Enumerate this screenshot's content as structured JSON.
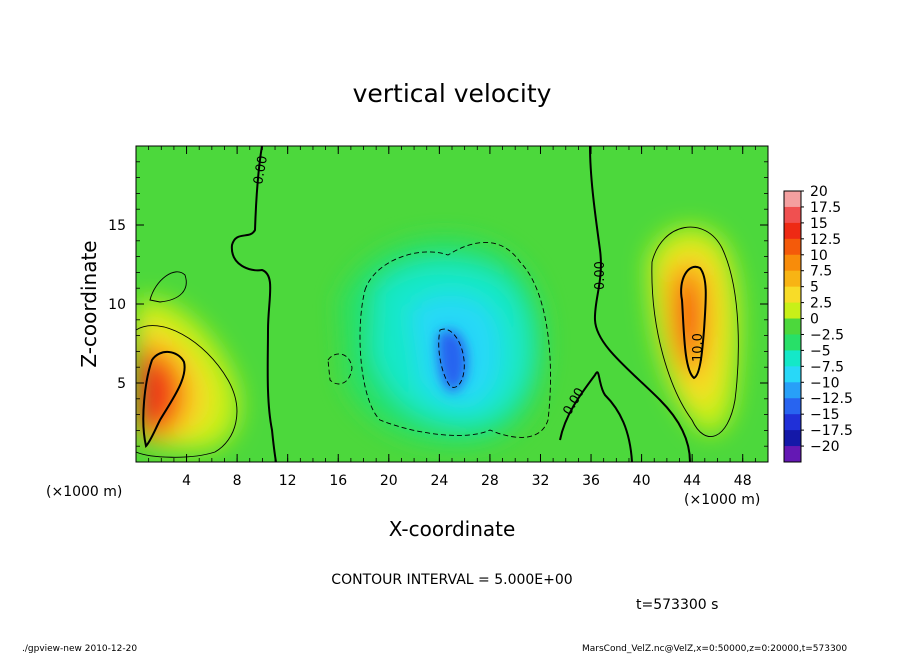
{
  "chart_data": {
    "type": "heatmap",
    "title": "vertical velocity",
    "xlabel": "X-coordinate",
    "ylabel": "Z-coordinate",
    "x_unit_label": "(×1000 m)",
    "xlim": [
      0,
      50
    ],
    "ylim": [
      0,
      20
    ],
    "x_ticks": [
      "4",
      "8",
      "12",
      "16",
      "20",
      "24",
      "28",
      "32",
      "36",
      "40",
      "44",
      "48"
    ],
    "y_ticks": [
      "5",
      "10",
      "15"
    ],
    "colorbar": {
      "labels": [
        "20",
        "17.5",
        "15",
        "12.5",
        "10",
        "7.5",
        "5",
        "2.5",
        "0",
        "−2.5",
        "−5",
        "−7.5",
        "−10",
        "−12.5",
        "−15",
        "−17.5",
        "−20"
      ],
      "colors": [
        "#f4a0a0",
        "#f05050",
        "#ee2a14",
        "#f45a0a",
        "#f88c0a",
        "#f8b414",
        "#f8dc28",
        "#c8f018",
        "#4cd83c",
        "#28e068",
        "#14e8c8",
        "#28d8f8",
        "#28a0f8",
        "#2864f0",
        "#2030d8",
        "#1418a8",
        "#6418b4"
      ]
    },
    "contour_labels": [
      "0.00",
      "0.00",
      "0.00",
      "10.0"
    ],
    "contour_interval": "CONTOUR INTERVAL = 5.000E+00",
    "time": "t=573300 s",
    "footer_left": "./gpview-new  2010-12-20",
    "footer_right": "MarsCond_VelZ.nc@VelZ,x=0:50000,z=0:20000,t=573300",
    "features": [
      {
        "x": 2.0,
        "z": 4.5,
        "value": 15,
        "label": "updraft-left"
      },
      {
        "x": 43.5,
        "z": 9.5,
        "value": 12,
        "label": "updraft-right"
      },
      {
        "x": 25.0,
        "z": 6.5,
        "value": -10,
        "label": "downdraft-center"
      }
    ]
  }
}
